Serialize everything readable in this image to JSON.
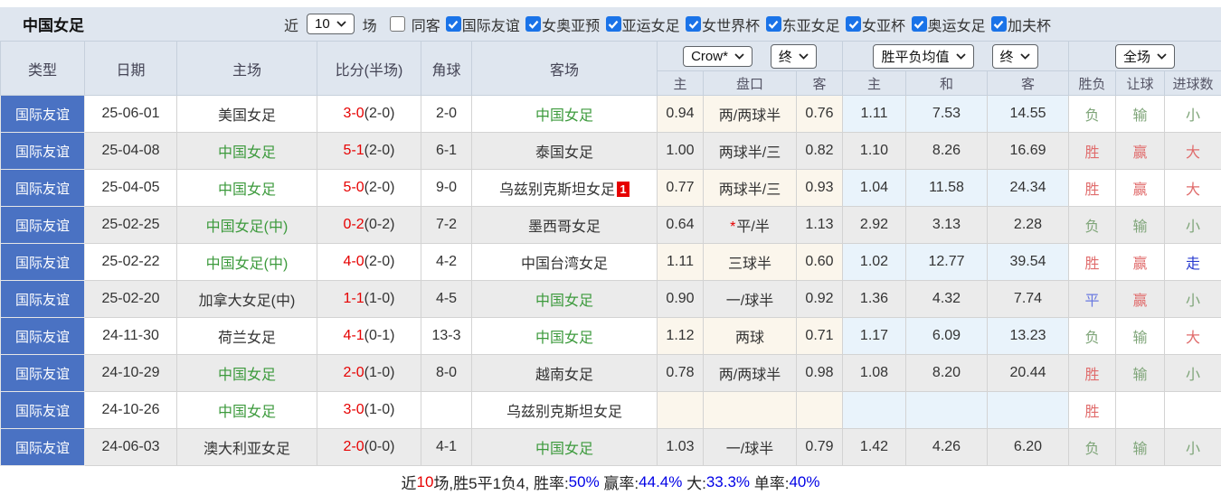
{
  "colors": {
    "accent_blue_cell": "#4a72c3",
    "bar_bg": "#dfe6ef",
    "row_alt": "#ebebeb",
    "odds_cream": "#fbf6ec",
    "odds_blue": "#e9f3fb",
    "checkbox_blue": "#1a73e8",
    "score_red": "#e60000",
    "team_green": "#3c9a3c",
    "black": "#333333",
    "result_red": "#e06c6c",
    "result_green": "#7fa579",
    "result_blue": "#6a79e0",
    "walk_blue": "#2a3cd0",
    "link_blue": "#0000e6"
  },
  "topbar": {
    "title": "中国女足",
    "recent_prefix": "近",
    "recent_select_value": "10",
    "recent_suffix": "场",
    "same_venue_label": "同客",
    "same_venue_checked": false,
    "competitions": [
      {
        "label": "国际友谊",
        "checked": true
      },
      {
        "label": "女奥亚预",
        "checked": true
      },
      {
        "label": "亚运女足",
        "checked": true
      },
      {
        "label": "女世界杯",
        "checked": true
      },
      {
        "label": "东亚女足",
        "checked": true
      },
      {
        "label": "女亚杯",
        "checked": true
      },
      {
        "label": "奥运女足",
        "checked": true
      },
      {
        "label": "加夫杯",
        "checked": true
      }
    ]
  },
  "table": {
    "main_headers": [
      "类型",
      "日期",
      "主场",
      "比分(半场)",
      "角球",
      "客场"
    ],
    "dropdowns": {
      "asia_source": "Crow*",
      "asia_period": "终",
      "europe_source": "胜平负均值",
      "europe_period": "终",
      "scope": "全场"
    },
    "sub_headers": [
      "主",
      "盘口",
      "客",
      "主",
      "和",
      "客",
      "胜负",
      "让球",
      "进球数"
    ],
    "rows": [
      {
        "type": "国际友谊",
        "date": "25-06-01",
        "home": "美国女足",
        "home_c": "black",
        "score": "3-0",
        "half": "(2-0)",
        "corner": "2-0",
        "away": "中国女足",
        "away_c": "team_green",
        "away_badge": "",
        "ah_home": "0.94",
        "ah_star": false,
        "ah_line": "两/两球半",
        "ah_away": "0.76",
        "eu_home": "1.11",
        "eu_draw": "7.53",
        "eu_away": "14.55",
        "res": "负",
        "res_c": "result_green",
        "ahr": "输",
        "ahr_c": "result_green",
        "gr": "小",
        "gr_c": "result_green"
      },
      {
        "type": "国际友谊",
        "date": "25-04-08",
        "home": "中国女足",
        "home_c": "team_green",
        "score": "5-1",
        "half": "(2-0)",
        "corner": "6-1",
        "away": "泰国女足",
        "away_c": "black",
        "away_badge": "",
        "ah_home": "1.00",
        "ah_star": false,
        "ah_line": "两球半/三",
        "ah_away": "0.82",
        "eu_home": "1.10",
        "eu_draw": "8.26",
        "eu_away": "16.69",
        "res": "胜",
        "res_c": "result_red",
        "ahr": "赢",
        "ahr_c": "result_red",
        "gr": "大",
        "gr_c": "result_red"
      },
      {
        "type": "国际友谊",
        "date": "25-04-05",
        "home": "中国女足",
        "home_c": "team_green",
        "score": "5-0",
        "half": "(2-0)",
        "corner": "9-0",
        "away": "乌兹别克斯坦女足",
        "away_c": "black",
        "away_badge": "1",
        "ah_home": "0.77",
        "ah_star": false,
        "ah_line": "两球半/三",
        "ah_away": "0.93",
        "eu_home": "1.04",
        "eu_draw": "11.58",
        "eu_away": "24.34",
        "res": "胜",
        "res_c": "result_red",
        "ahr": "赢",
        "ahr_c": "result_red",
        "gr": "大",
        "gr_c": "result_red"
      },
      {
        "type": "国际友谊",
        "date": "25-02-25",
        "home": "中国女足(中)",
        "home_c": "team_green",
        "score": "0-2",
        "half": "(0-2)",
        "corner": "7-2",
        "away": "墨西哥女足",
        "away_c": "black",
        "away_badge": "",
        "ah_home": "0.64",
        "ah_star": true,
        "ah_line": "平/半",
        "ah_away": "1.13",
        "eu_home": "2.92",
        "eu_draw": "3.13",
        "eu_away": "2.28",
        "res": "负",
        "res_c": "result_green",
        "ahr": "输",
        "ahr_c": "result_green",
        "gr": "小",
        "gr_c": "result_green"
      },
      {
        "type": "国际友谊",
        "date": "25-02-22",
        "home": "中国女足(中)",
        "home_c": "team_green",
        "score": "4-0",
        "half": "(2-0)",
        "corner": "4-2",
        "away": "中国台湾女足",
        "away_c": "black",
        "away_badge": "",
        "ah_home": "1.11",
        "ah_star": false,
        "ah_line": "三球半",
        "ah_away": "0.60",
        "eu_home": "1.02",
        "eu_draw": "12.77",
        "eu_away": "39.54",
        "res": "胜",
        "res_c": "result_red",
        "ahr": "赢",
        "ahr_c": "result_red",
        "gr": "走",
        "gr_c": "walk_blue"
      },
      {
        "type": "国际友谊",
        "date": "25-02-20",
        "home": "加拿大女足(中)",
        "home_c": "black",
        "score": "1-1",
        "half": "(1-0)",
        "corner": "4-5",
        "away": "中国女足",
        "away_c": "team_green",
        "away_badge": "",
        "ah_home": "0.90",
        "ah_star": false,
        "ah_line": "一/球半",
        "ah_away": "0.92",
        "eu_home": "1.36",
        "eu_draw": "4.32",
        "eu_away": "7.74",
        "res": "平",
        "res_c": "result_blue",
        "ahr": "赢",
        "ahr_c": "result_red",
        "gr": "小",
        "gr_c": "result_green"
      },
      {
        "type": "国际友谊",
        "date": "24-11-30",
        "home": "荷兰女足",
        "home_c": "black",
        "score": "4-1",
        "half": "(0-1)",
        "corner": "13-3",
        "away": "中国女足",
        "away_c": "team_green",
        "away_badge": "",
        "ah_home": "1.12",
        "ah_star": false,
        "ah_line": "两球",
        "ah_away": "0.71",
        "eu_home": "1.17",
        "eu_draw": "6.09",
        "eu_away": "13.23",
        "res": "负",
        "res_c": "result_green",
        "ahr": "输",
        "ahr_c": "result_green",
        "gr": "大",
        "gr_c": "result_red"
      },
      {
        "type": "国际友谊",
        "date": "24-10-29",
        "home": "中国女足",
        "home_c": "team_green",
        "score": "2-0",
        "half": "(1-0)",
        "corner": "8-0",
        "away": "越南女足",
        "away_c": "black",
        "away_badge": "",
        "ah_home": "0.78",
        "ah_star": false,
        "ah_line": "两/两球半",
        "ah_away": "0.98",
        "eu_home": "1.08",
        "eu_draw": "8.20",
        "eu_away": "20.44",
        "res": "胜",
        "res_c": "result_red",
        "ahr": "输",
        "ahr_c": "result_green",
        "gr": "小",
        "gr_c": "result_green"
      },
      {
        "type": "国际友谊",
        "date": "24-10-26",
        "home": "中国女足",
        "home_c": "team_green",
        "score": "3-0",
        "half": "(1-0)",
        "corner": "",
        "away": "乌兹别克斯坦女足",
        "away_c": "black",
        "away_badge": "",
        "ah_home": "",
        "ah_star": false,
        "ah_line": "",
        "ah_away": "",
        "eu_home": "",
        "eu_draw": "",
        "eu_away": "",
        "res": "胜",
        "res_c": "result_red",
        "ahr": "",
        "ahr_c": "black",
        "gr": "",
        "gr_c": "black"
      },
      {
        "type": "国际友谊",
        "date": "24-06-03",
        "home": "澳大利亚女足",
        "home_c": "black",
        "score": "2-0",
        "half": "(0-0)",
        "corner": "4-1",
        "away": "中国女足",
        "away_c": "team_green",
        "away_badge": "",
        "ah_home": "1.03",
        "ah_star": false,
        "ah_line": "一/球半",
        "ah_away": "0.79",
        "eu_home": "1.42",
        "eu_draw": "4.26",
        "eu_away": "6.20",
        "res": "负",
        "res_c": "result_green",
        "ahr": "输",
        "ahr_c": "result_green",
        "gr": "小",
        "gr_c": "result_green"
      }
    ]
  },
  "footer": {
    "segments": [
      {
        "text": "近",
        "c": "black"
      },
      {
        "text": "10",
        "c": "red"
      },
      {
        "text": "场,胜5平1负4, 胜率:",
        "c": "black"
      },
      {
        "text": "50%",
        "c": "blue"
      },
      {
        "text": " 赢率:",
        "c": "black"
      },
      {
        "text": "44.4%",
        "c": "blue"
      },
      {
        "text": " 大:",
        "c": "black"
      },
      {
        "text": "33.3%",
        "c": "blue"
      },
      {
        "text": " 单率:",
        "c": "black"
      },
      {
        "text": "40%",
        "c": "blue"
      }
    ]
  }
}
